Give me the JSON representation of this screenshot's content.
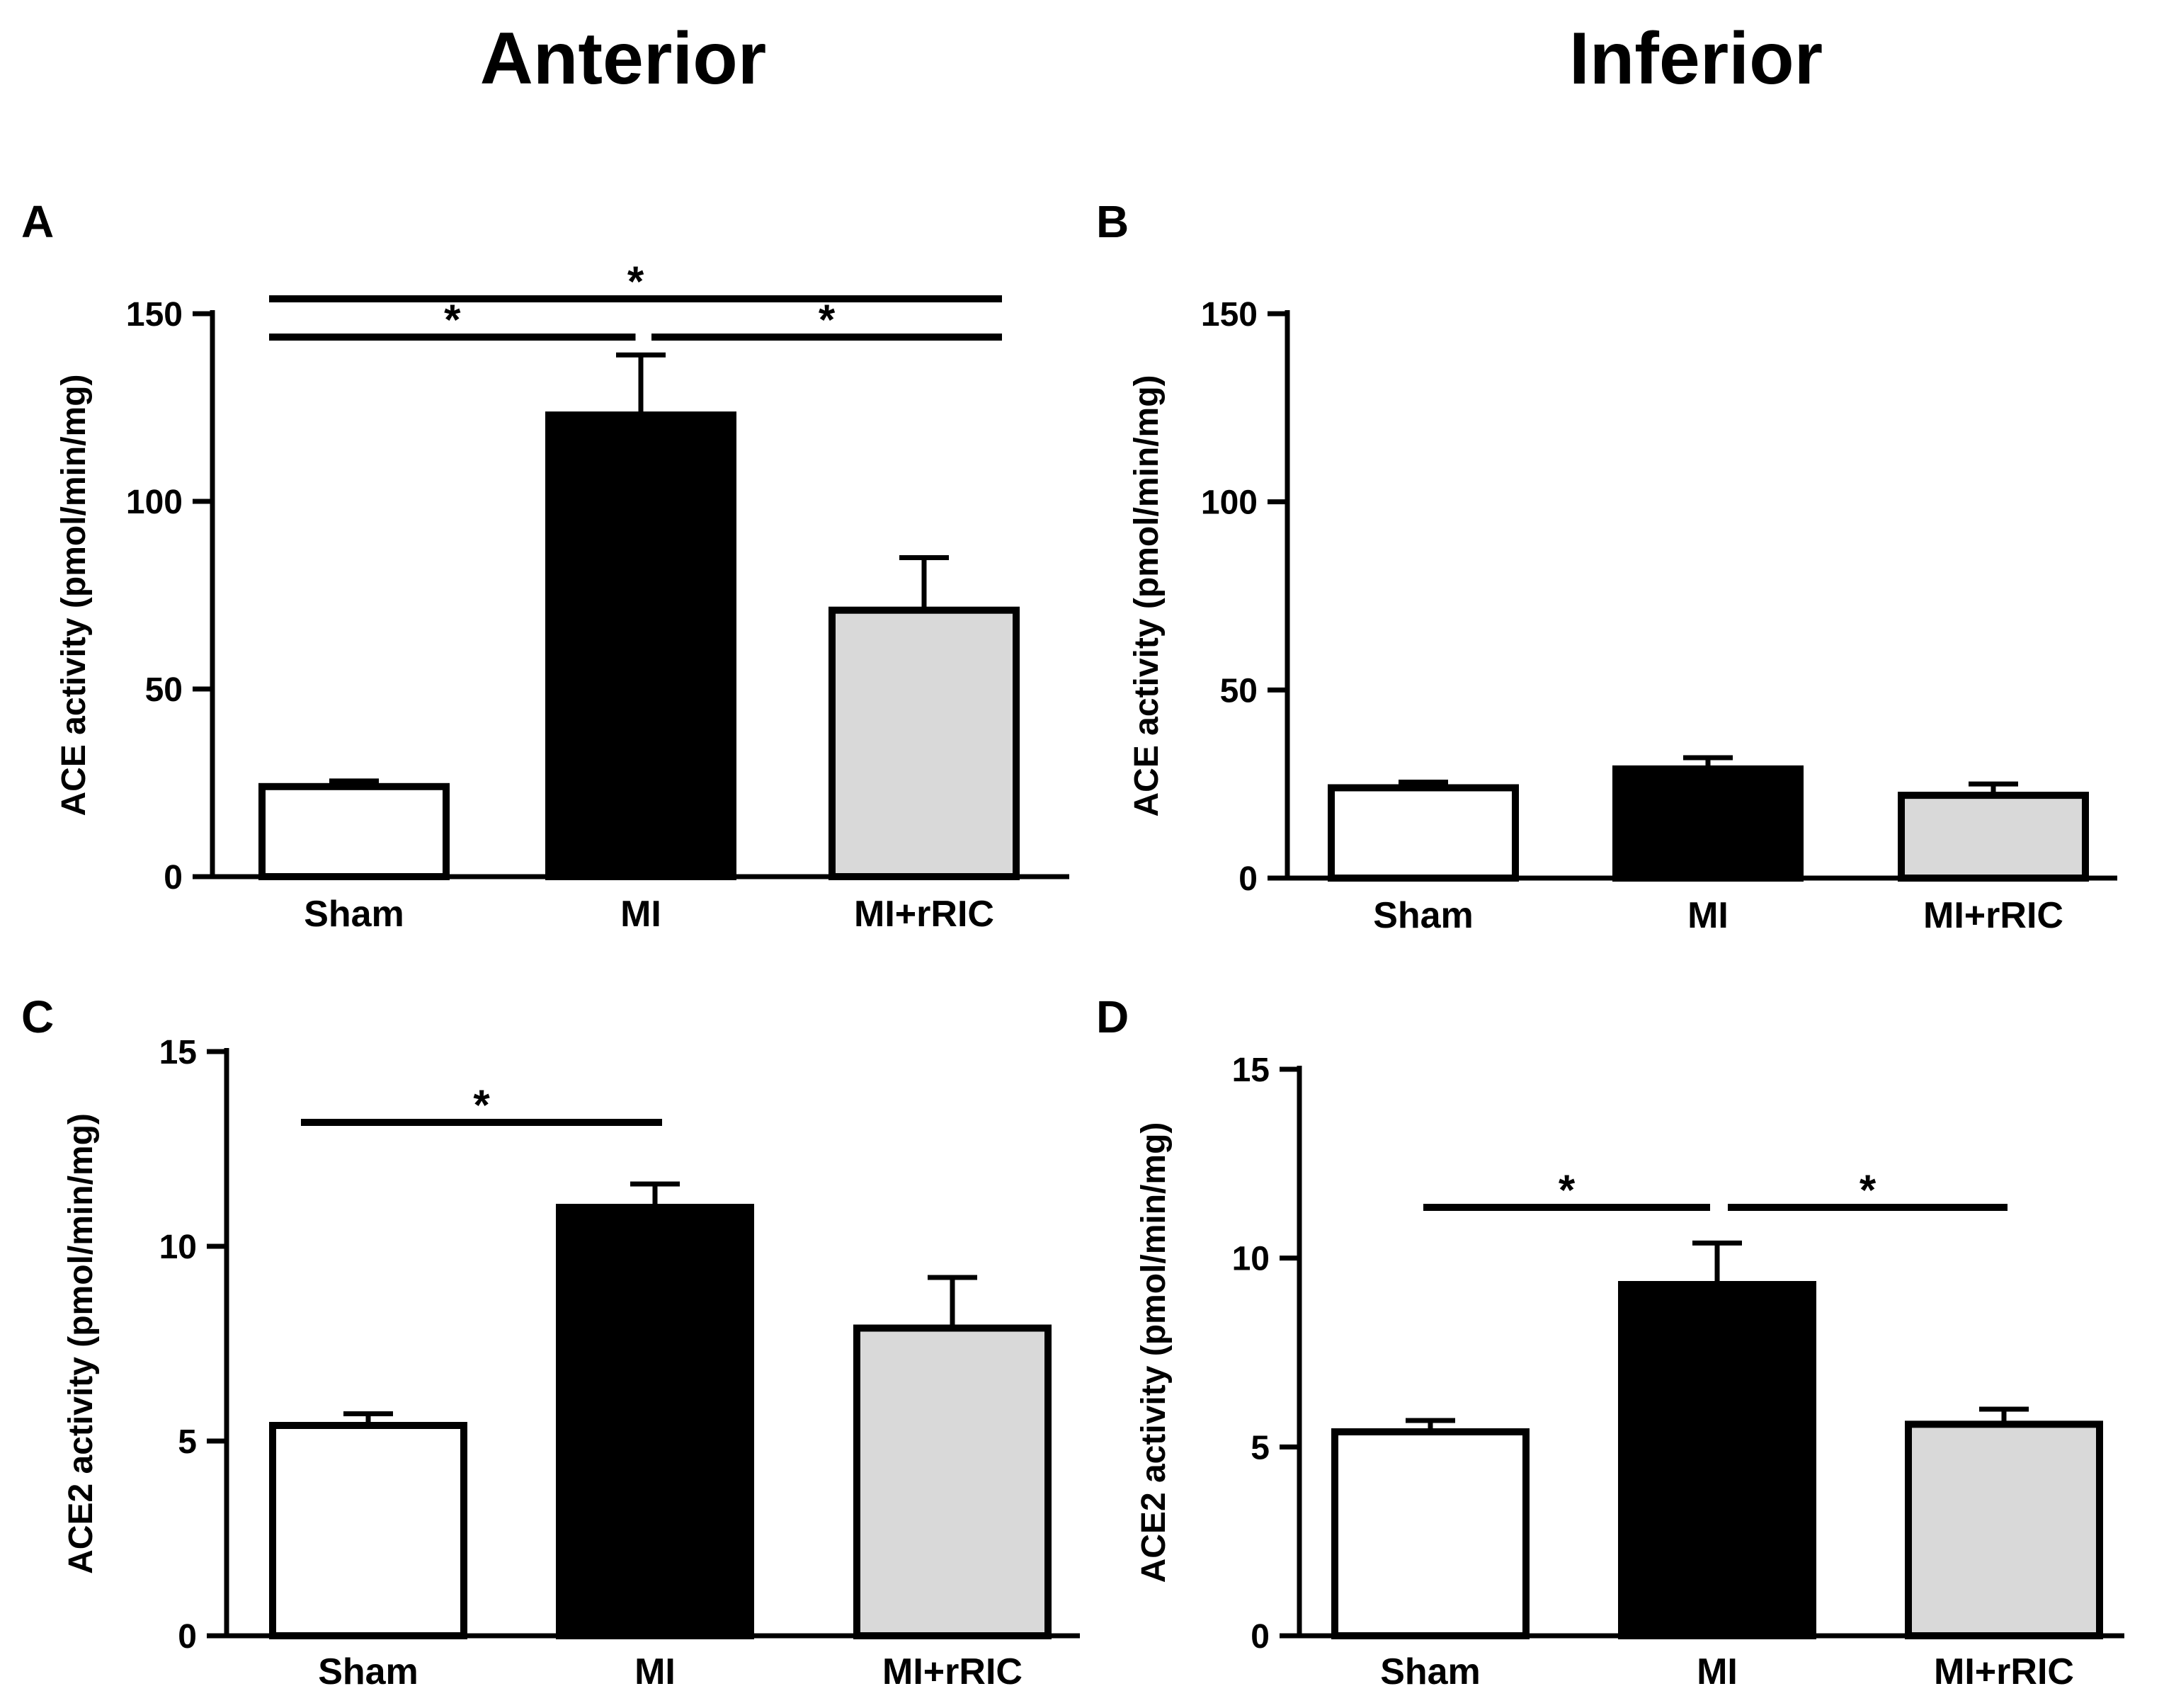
{
  "column_titles": [
    "Anterior",
    "Inferior"
  ],
  "colors": {
    "sham": "#ffffff",
    "mi": "#000000",
    "mi_rric": "#d9d9d9",
    "stroke": "#000000"
  },
  "chart_data": [
    {
      "panel": "A",
      "type": "bar",
      "region": "Anterior",
      "ylabel": "ACE activity (pmol/min/mg)",
      "ylim": [
        0,
        150
      ],
      "yticks": [
        0,
        50,
        100,
        150
      ],
      "categories": [
        "Sham",
        "MI",
        "MI+rRIC"
      ],
      "values": [
        24,
        123,
        71
      ],
      "errors": [
        1.5,
        16,
        14
      ],
      "significance": [
        {
          "from": 0,
          "to": 2,
          "label": "*",
          "level": 0
        },
        {
          "from": 0,
          "to": 1,
          "label": "*",
          "level": 1
        },
        {
          "from": 1,
          "to": 2,
          "label": "*",
          "level": 1
        }
      ]
    },
    {
      "panel": "B",
      "type": "bar",
      "region": "Inferior",
      "ylabel": "ACE activity (pmol/min/mg)",
      "ylim": [
        0,
        150
      ],
      "yticks": [
        0,
        50,
        100,
        150
      ],
      "categories": [
        "Sham",
        "MI",
        "MI+rRIC"
      ],
      "values": [
        24,
        29,
        22
      ],
      "errors": [
        1.5,
        3,
        3
      ],
      "significance": []
    },
    {
      "panel": "C",
      "type": "bar",
      "region": "Anterior",
      "ylabel": "ACE2 activity (pmol/min/mg)",
      "ylim": [
        0,
        15
      ],
      "yticks": [
        0,
        5,
        10,
        15
      ],
      "categories": [
        "Sham",
        "MI",
        "MI+rRIC"
      ],
      "values": [
        5.4,
        11.0,
        7.9
      ],
      "errors": [
        0.3,
        0.6,
        1.3
      ],
      "significance": [
        {
          "from": 0,
          "to": 1,
          "label": "*",
          "level": 0
        }
      ]
    },
    {
      "panel": "D",
      "type": "bar",
      "region": "Inferior",
      "ylabel": "ACE2 activity (pmol/min/mg)",
      "ylim": [
        0,
        15
      ],
      "yticks": [
        0,
        5,
        10,
        15
      ],
      "categories": [
        "Sham",
        "MI",
        "MI+rRIC"
      ],
      "values": [
        5.4,
        9.3,
        5.6
      ],
      "errors": [
        0.3,
        1.1,
        0.4
      ],
      "significance": [
        {
          "from": 0,
          "to": 1,
          "label": "*",
          "level": 0
        },
        {
          "from": 1,
          "to": 2,
          "label": "*",
          "level": 0
        }
      ]
    }
  ]
}
